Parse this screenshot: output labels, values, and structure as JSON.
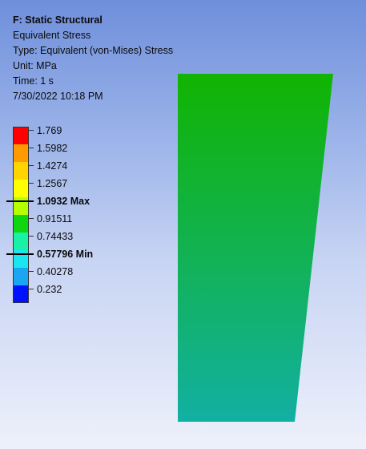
{
  "header": {
    "title": "F: Static Structural",
    "result_name": "Equivalent Stress",
    "type_line": "Type: Equivalent (von-Mises) Stress",
    "unit_line": "Unit: MPa",
    "time_line": "Time: 1 s",
    "datetime": "7/30/2022 10:18 PM"
  },
  "legend": {
    "levels": [
      {
        "value": "1.769",
        "color": "#ff0000",
        "bold": false,
        "marker": false
      },
      {
        "value": "1.5982",
        "color": "#ff9a00",
        "bold": false,
        "marker": false
      },
      {
        "value": "1.4274",
        "color": "#ffd400",
        "bold": false,
        "marker": false
      },
      {
        "value": "1.2567",
        "color": "#ffff00",
        "bold": false,
        "marker": false
      },
      {
        "value": "1.0932 Max",
        "color": "#b6ff00",
        "bold": true,
        "marker": true
      },
      {
        "value": "0.91511",
        "color": "#0fd60f",
        "bold": false,
        "marker": false
      },
      {
        "value": "0.74433",
        "color": "#19f2a6",
        "bold": false,
        "marker": false
      },
      {
        "value": "0.57796 Min",
        "color": "#1ae6f0",
        "bold": true,
        "marker": true
      },
      {
        "value": "0.40278",
        "color": "#1aa6f2",
        "bold": false,
        "marker": false
      },
      {
        "value": "0.232",
        "color": "#0011ff",
        "bold": false,
        "marker": false
      }
    ]
  },
  "model": {
    "top_color": "#11b400",
    "bottom_color": "#12b0a2"
  }
}
